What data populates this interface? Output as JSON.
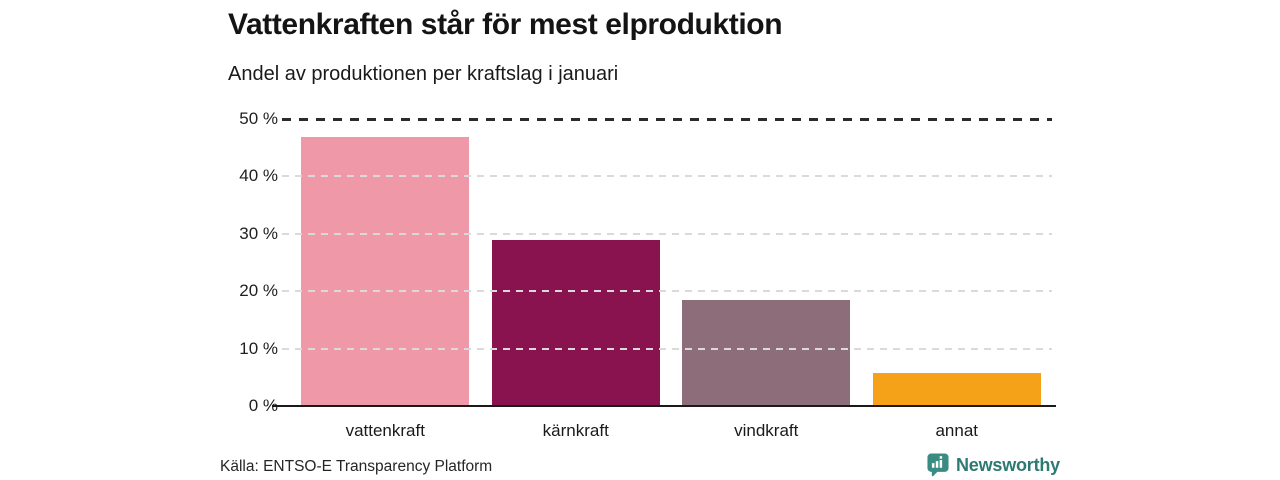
{
  "header": {
    "title": "Vattenkraften står för mest elproduktion",
    "subtitle": "Andel av produktionen per kraftslag i januari"
  },
  "chart_data": {
    "type": "bar",
    "title": "Vattenkraften står för mest elproduktion",
    "subtitle": "Andel av produktionen per kraftslag i januari",
    "categories": [
      "vattenkraft",
      "kärnkraft",
      "vindkraft",
      "annat"
    ],
    "values": [
      46.8,
      28.9,
      18.5,
      5.8
    ],
    "unit": "%",
    "bar_colors": [
      "#ee98a8",
      "#88134f",
      "#8c6d79",
      "#f6a218"
    ],
    "xlabel": "",
    "ylabel": "",
    "ylim": [
      0,
      50
    ],
    "yticks": [
      0,
      10,
      20,
      30,
      40,
      50
    ],
    "ytick_labels": [
      "0 %",
      "10 %",
      "20 %",
      "30 %",
      "40 %",
      "50 %"
    ],
    "grid": "horizontal-dashed",
    "top_reference_line": {
      "value": 50,
      "style": "dashed",
      "color": "#2b2b2b"
    },
    "legend": "none"
  },
  "footer": {
    "source": "Källa: ENTSO-E Transparency Platform",
    "brand": "Newsworthy",
    "brand_color": "#2d7a72",
    "logo": "bar-chart-speech-bubble-icon"
  }
}
